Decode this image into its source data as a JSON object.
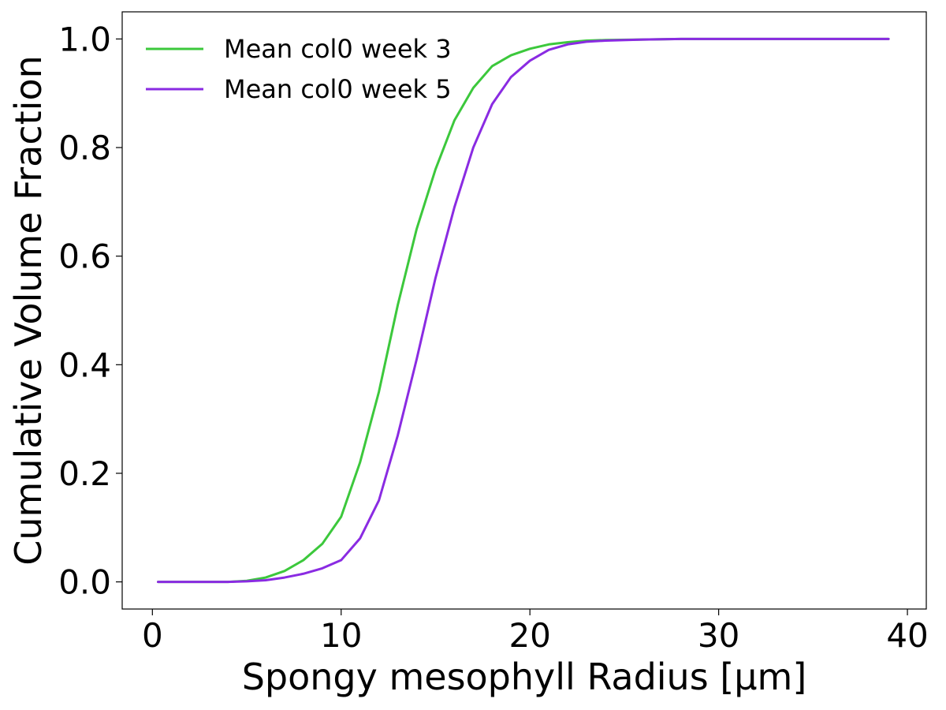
{
  "chart_data": {
    "type": "line",
    "xlabel": "Spongy mesophyll Radius [μm]",
    "ylabel": "Cumulative Volume Fraction",
    "xlim": [
      -1.6,
      41.0
    ],
    "ylim": [
      -0.05,
      1.05
    ],
    "xticks": [
      0,
      10,
      20,
      30,
      40
    ],
    "yticks": [
      0.0,
      0.2,
      0.4,
      0.6,
      0.8,
      1.0
    ],
    "xtick_labels": [
      "0",
      "10",
      "20",
      "30",
      "40"
    ],
    "ytick_labels": [
      "0.0",
      "0.2",
      "0.4",
      "0.6",
      "0.8",
      "1.0"
    ],
    "grid": false,
    "legend_position": "top-left",
    "series": [
      {
        "name": "Mean col0 week 3",
        "color": "#3cc83c",
        "x": [
          0.3,
          2,
          4,
          5,
          6,
          7,
          8,
          9,
          10,
          11,
          12,
          13,
          14,
          15,
          16,
          17,
          18,
          19,
          20,
          21,
          22,
          23,
          24,
          26,
          28,
          30,
          35,
          39
        ],
        "y": [
          0.0,
          0.0,
          0.0,
          0.002,
          0.008,
          0.02,
          0.04,
          0.07,
          0.12,
          0.22,
          0.35,
          0.51,
          0.65,
          0.76,
          0.85,
          0.91,
          0.95,
          0.97,
          0.982,
          0.99,
          0.994,
          0.997,
          0.998,
          0.999,
          1.0,
          1.0,
          1.0,
          1.0
        ]
      },
      {
        "name": "Mean col0 week 5",
        "color": "#8a2be2",
        "x": [
          0.3,
          2,
          4,
          5,
          6,
          7,
          8,
          9,
          10,
          11,
          12,
          13,
          14,
          15,
          16,
          17,
          18,
          19,
          20,
          21,
          22,
          23,
          24,
          26,
          28,
          30,
          35,
          39
        ],
        "y": [
          0.0,
          0.0,
          0.0,
          0.001,
          0.003,
          0.008,
          0.015,
          0.025,
          0.04,
          0.08,
          0.15,
          0.27,
          0.41,
          0.56,
          0.69,
          0.8,
          0.88,
          0.93,
          0.96,
          0.98,
          0.99,
          0.995,
          0.997,
          0.999,
          1.0,
          1.0,
          1.0,
          1.0
        ]
      }
    ]
  }
}
